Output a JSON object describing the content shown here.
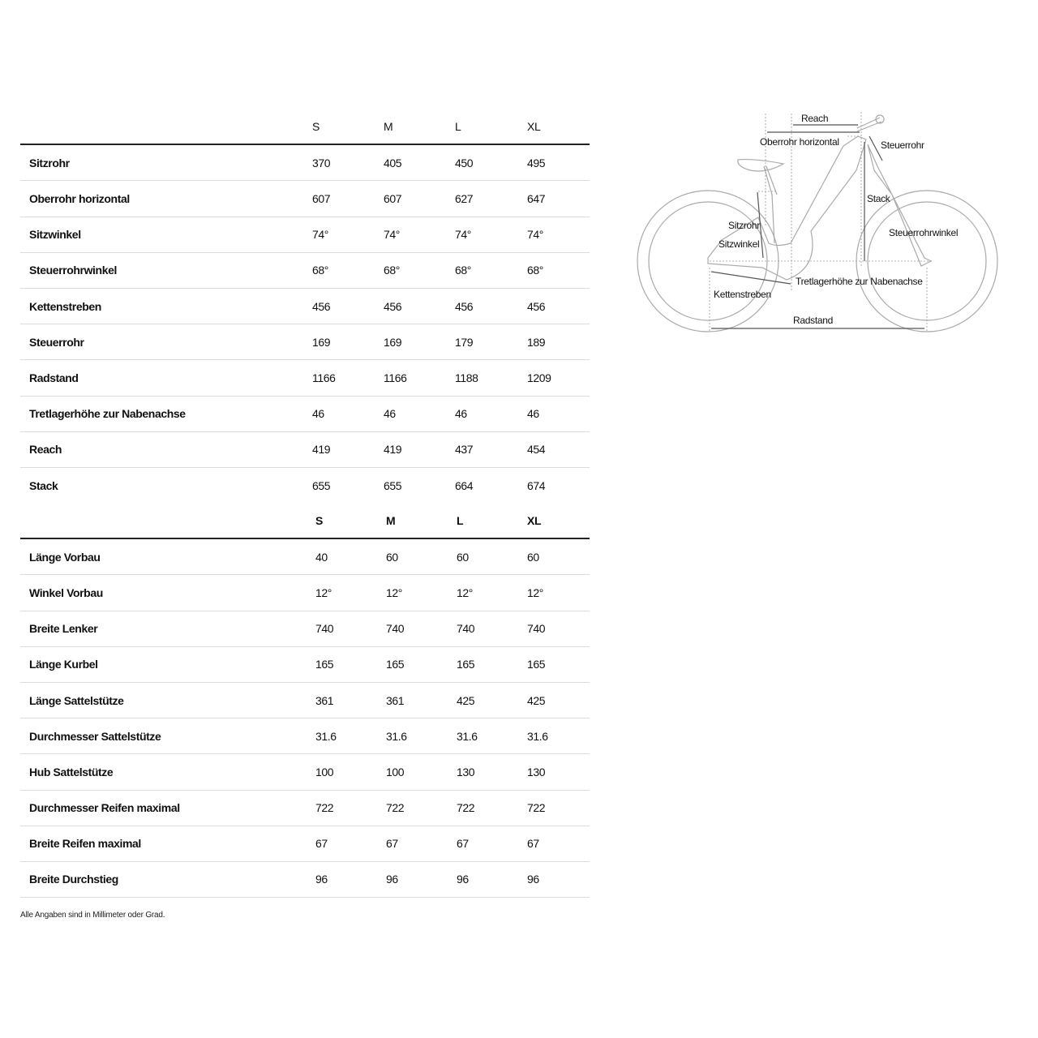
{
  "table1": {
    "sizes": [
      "S",
      "M",
      "L",
      "XL"
    ],
    "rows": [
      {
        "label": "Sitzrohr",
        "values": [
          "370",
          "405",
          "450",
          "495"
        ]
      },
      {
        "label": "Oberrohr horizontal",
        "values": [
          "607",
          "607",
          "627",
          "647"
        ]
      },
      {
        "label": "Sitzwinkel",
        "values": [
          "74°",
          "74°",
          "74°",
          "74°"
        ]
      },
      {
        "label": "Steuerrohrwinkel",
        "values": [
          "68°",
          "68°",
          "68°",
          "68°"
        ]
      },
      {
        "label": "Kettenstreben",
        "values": [
          "456",
          "456",
          "456",
          "456"
        ]
      },
      {
        "label": "Steuerrohr",
        "values": [
          "169",
          "169",
          "179",
          "189"
        ]
      },
      {
        "label": "Radstand",
        "values": [
          "1166",
          "1166",
          "1188",
          "1209"
        ]
      },
      {
        "label": "Tretlagerhöhe zur Nabenachse",
        "values": [
          "46",
          "46",
          "46",
          "46"
        ]
      },
      {
        "label": "Reach",
        "values": [
          "419",
          "419",
          "437",
          "454"
        ]
      },
      {
        "label": "Stack",
        "values": [
          "655",
          "655",
          "664",
          "674"
        ]
      }
    ]
  },
  "table2": {
    "sizes": [
      "S",
      "M",
      "L",
      "XL"
    ],
    "rows": [
      {
        "label": "Länge Vorbau",
        "values": [
          "40",
          "60",
          "60",
          "60"
        ]
      },
      {
        "label": "Winkel Vorbau",
        "values": [
          "12°",
          "12°",
          "12°",
          "12°"
        ]
      },
      {
        "label": "Breite Lenker",
        "values": [
          "740",
          "740",
          "740",
          "740"
        ]
      },
      {
        "label": "Länge Kurbel",
        "values": [
          "165",
          "165",
          "165",
          "165"
        ]
      },
      {
        "label": "Länge Sattelstütze",
        "values": [
          "361",
          "361",
          "425",
          "425"
        ]
      },
      {
        "label": "Durchmesser Sattelstütze",
        "values": [
          "31.6",
          "31.6",
          "31.6",
          "31.6"
        ]
      },
      {
        "label": "Hub Sattelstütze",
        "values": [
          "100",
          "100",
          "130",
          "130"
        ]
      },
      {
        "label": "Durchmesser Reifen maximal",
        "values": [
          "722",
          "722",
          "722",
          "722"
        ]
      },
      {
        "label": "Breite Reifen maximal",
        "values": [
          "67",
          "67",
          "67",
          "67"
        ]
      },
      {
        "label": "Breite Durchstieg",
        "values": [
          "96",
          "96",
          "96",
          "96"
        ]
      }
    ]
  },
  "footnote": "Alle Angaben sind in Millimeter oder Grad.",
  "diagram": {
    "reach": "Reach",
    "oberrohr": "Oberrohr horizontal",
    "steuerrohr": "Steuerrohr",
    "stack": "Stack",
    "sitzrohr": "Sitzrohr",
    "sitzwinkel": "Sitzwinkel",
    "steuerrohrwinkel": "Steuerrohrwinkel",
    "tretlager": "Tretlagerhöhe zur Nabenachse",
    "kettenstreben": "Kettenstreben",
    "radstand": "Radstand"
  }
}
